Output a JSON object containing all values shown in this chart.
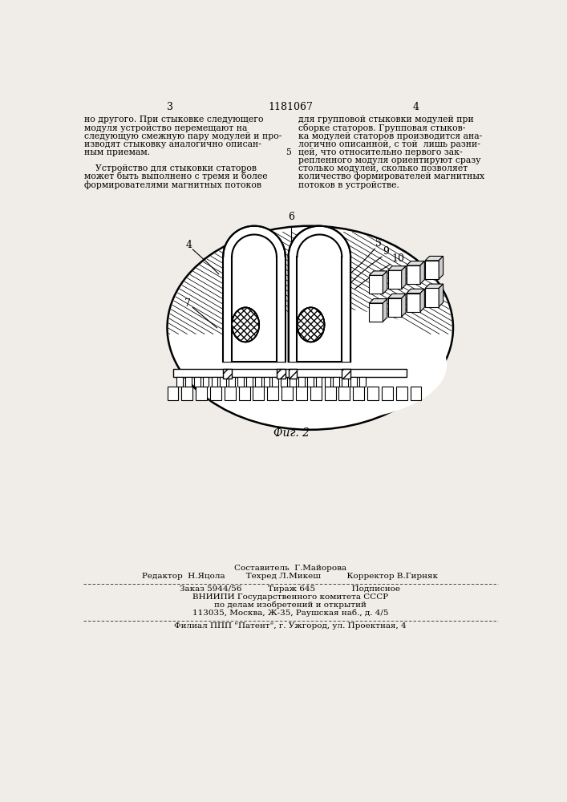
{
  "bg_color": "#f0ede8",
  "page_number_left": "3",
  "page_number_center": "1181067",
  "page_number_right": "4",
  "col_left_text": [
    "но другого. При стыковке следующего",
    "модуля устройство перемещают на",
    "следующую смежную пару модулей и про-",
    "изводят стыковку аналогично описан-",
    "ным приемам.",
    "",
    "    Устройство для стыковки статоров",
    "может быть выполнено с тремя и более",
    "формирователями магнитных потоков"
  ],
  "col_right_text": [
    "для групповой стыковки модулей при",
    "сборке статоров. Групповая стыков-",
    "ка модулей статоров производится ана-",
    "логично описанной, с той  лишь разни-",
    "цей, что относительно первого зак-",
    "репленного модуля ориентируют сразу",
    "столько модулей, сколько позволяет",
    "количество формирователей магнитных",
    "потоков в устройстве."
  ],
  "fig_caption": "Фиг. 2",
  "label_4": "4",
  "label_5": "5",
  "label_6": "6",
  "label_7": "7",
  "label_9": "9",
  "label_10": "10",
  "composer_line": "Составитель  Г.Майорова",
  "editor_line": "Редактор  Н.Яцола        Техред Л.Микеш          Корректор В.Гирняк",
  "order_line": "Заказ 5944/56          Тираж 645              Подписное",
  "vnipi_line1": "ВНИИПИ Государственного комитета СССР",
  "vnipi_line2": "по делам изобретений и открытий",
  "vnipi_line3": "113035, Москва, Ж-35, Раушская наб., д. 4/5",
  "filial_line": "Филиал ППП \"Патент\", г. Ужгород, ул. Проектная, 4"
}
